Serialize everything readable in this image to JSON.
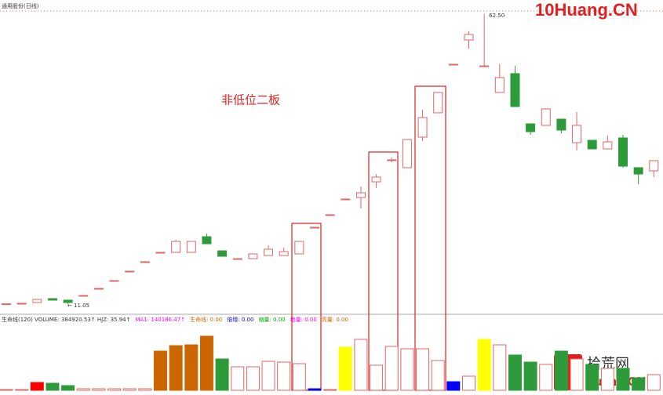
{
  "chart_data": {
    "type": "candlestick",
    "title": "通用股份(日线)",
    "annotation": "非低位二板",
    "high_label": "62.50",
    "low_label": "11.05",
    "watermark": "10Huang.CN",
    "logo_text": "拾荒网",
    "logo_sub": "Huang.CN",
    "up_color": "#e06666",
    "down_color": "#2e9b3a",
    "ylim": [
      9.66,
      64.98
    ],
    "open": [
      11.1,
      11.19,
      11.33,
      12.02,
      11.75,
      12.58,
      13.83,
      15.22,
      16.89,
      18.56,
      20.22,
      20.22,
      20.22,
      23.0,
      20.5,
      19.11,
      19.11,
      19.67,
      19.67,
      19.95,
      24.67,
      26.9,
      29.68,
      29.95,
      32.73,
      36.5,
      35.24,
      40.66,
      44.97,
      53.58,
      57.89,
      53.3,
      48.58,
      51.92,
      43.02,
      42.74,
      43.85,
      39.68,
      40.1,
      38.57,
      40.52,
      35.24,
      34.68
    ],
    "high": [
      11.1,
      11.19,
      11.88,
      12.02,
      11.75,
      12.58,
      13.83,
      15.22,
      16.89,
      18.56,
      20.22,
      22.45,
      22.17,
      23.56,
      20.5,
      19.11,
      19.95,
      21.48,
      21.06,
      22.17,
      24.67,
      26.9,
      29.68,
      31.9,
      34.12,
      37.04,
      40.24,
      45.52,
      48.58,
      53.58,
      59.42,
      62.5,
      53.58,
      53.3,
      43.02,
      45.8,
      43.85,
      45.11,
      40.1,
      40.92,
      41.07,
      35.24,
      36.49
    ],
    "low": [
      11.1,
      11.19,
      11.33,
      11.75,
      11.05,
      12.58,
      13.83,
      15.22,
      16.89,
      18.56,
      20.22,
      20.22,
      20.22,
      21.75,
      19.53,
      19.11,
      19.11,
      19.67,
      19.67,
      19.95,
      24.67,
      26.9,
      29.68,
      28.0,
      31.62,
      36.2,
      35.24,
      39.96,
      44.97,
      53.58,
      56.36,
      53.3,
      48.58,
      46.08,
      41.07,
      42.74,
      41.35,
      38.29,
      38.57,
      38.57,
      35.24,
      32.32,
      33.57
    ],
    "close": [
      11.1,
      11.19,
      11.88,
      11.75,
      11.33,
      12.58,
      13.83,
      15.22,
      16.89,
      18.56,
      20.22,
      22.17,
      22.17,
      21.75,
      19.53,
      19.11,
      19.95,
      20.78,
      20.36,
      22.17,
      24.67,
      26.9,
      29.68,
      30.79,
      33.57,
      36.63,
      40.24,
      44.13,
      48.58,
      53.58,
      58.87,
      53.3,
      51.22,
      46.08,
      41.63,
      45.66,
      41.91,
      42.74,
      38.57,
      39.82,
      35.51,
      34.12,
      36.49
    ],
    "volume": [
      19000,
      19000,
      190000,
      171000,
      114000,
      38000,
      38000,
      38000,
      38000,
      38000,
      950000,
      1083000,
      1102000,
      1311000,
      760000,
      570000,
      570000,
      703000,
      684000,
      646000,
      38000,
      19000,
      1045000,
      1235000,
      608000,
      1064000,
      1007000,
      1007000,
      722000,
      209000,
      342000,
      1235000,
      1102000,
      855000,
      684000,
      627000,
      950000,
      760000,
      627000,
      532000,
      532000,
      304000,
      380000
    ],
    "volume_colors": [
      "#e06666",
      "#e06666",
      "#ff0000",
      "#2e9b3a",
      "#2e9b3a",
      "#e06666",
      "#e06666",
      "#e06666",
      "#e06666",
      "#e06666",
      "#cc6600",
      "#cc6600",
      "#cc6600",
      "#cc6600",
      "#2e9b3a",
      "#e06666",
      "#e06666",
      "#e06666",
      "#e06666",
      "#e06666",
      "#0000ff",
      "#e06666",
      "#ffff00",
      "#e06666",
      "#e06666",
      "#e06666",
      "#e06666",
      "#e06666",
      "#e06666",
      "#0000ff",
      "#e06666",
      "#ffff00",
      "#e06666",
      "#2e9b3a",
      "#2e9b3a",
      "#e06666",
      "#2e9b3a",
      "#e06666",
      "#2e9b3a",
      "#e06666",
      "#2e9b3a",
      "#2e9b3a",
      "#e06666"
    ],
    "volume_ylim": [
      0,
      1615000
    ],
    "header_items": [
      {
        "text": "生命线(120) VOLUME: 384920.53↑ HJZ: 35.94↑",
        "color": "#333333"
      },
      {
        "text": "MA1: 140186.47↑",
        "color": "#ff00ff"
      },
      {
        "text": "生命线: 0.00",
        "color": "#cc6600"
      },
      {
        "text": "倍增: 0.00",
        "color": "#0000cc"
      },
      {
        "text": "缩量: 0.00",
        "color": "#00aa00"
      },
      {
        "text": "地量: 0.00",
        "color": "#ff00ff"
      },
      {
        "text": "高量: 0.00",
        "color": "#cc6600"
      }
    ]
  }
}
